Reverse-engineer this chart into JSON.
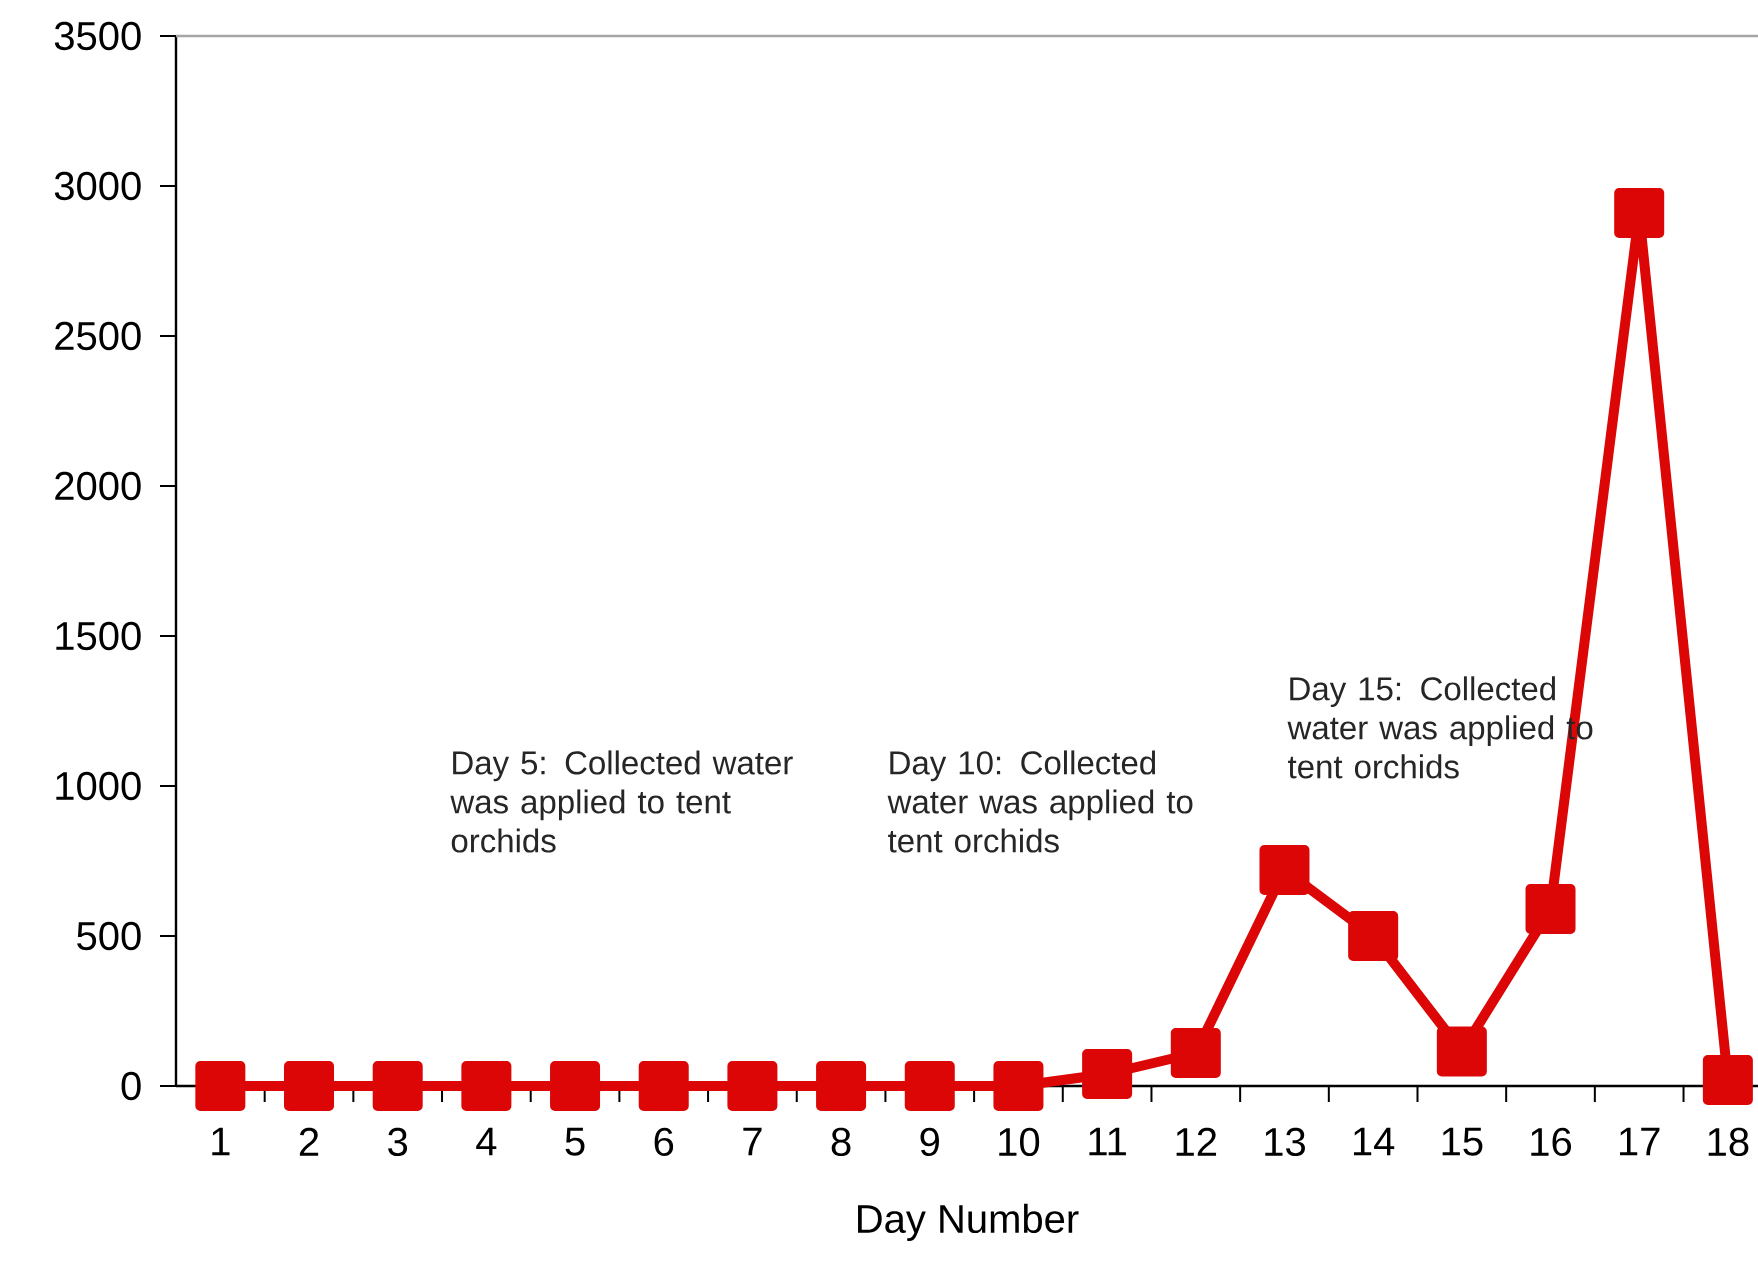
{
  "chart_data": {
    "type": "line",
    "xlabel": "Day Number",
    "categories": [
      "1",
      "2",
      "3",
      "4",
      "5",
      "6",
      "7",
      "8",
      "9",
      "10",
      "11",
      "12",
      "13",
      "14",
      "15",
      "16",
      "17",
      "18"
    ],
    "series": [
      {
        "color": "#dd0606",
        "values": [
          0,
          0,
          0,
          0,
          0,
          0,
          0,
          0,
          0,
          0,
          40,
          110,
          720,
          500,
          115,
          590,
          2910,
          20
        ]
      }
    ],
    "ylim": [
      0,
      3500
    ],
    "yticks": [
      0,
      500,
      1000,
      1500,
      2000,
      2500,
      3000,
      3500
    ],
    "marker": "square",
    "line_style": "solid",
    "annotations": [
      "Day 5: Collected water was applied to tent orchids",
      "Day 10: Collected water was applied to tent orchids",
      "Day 15: Collected water was applied to tent orchids"
    ]
  }
}
